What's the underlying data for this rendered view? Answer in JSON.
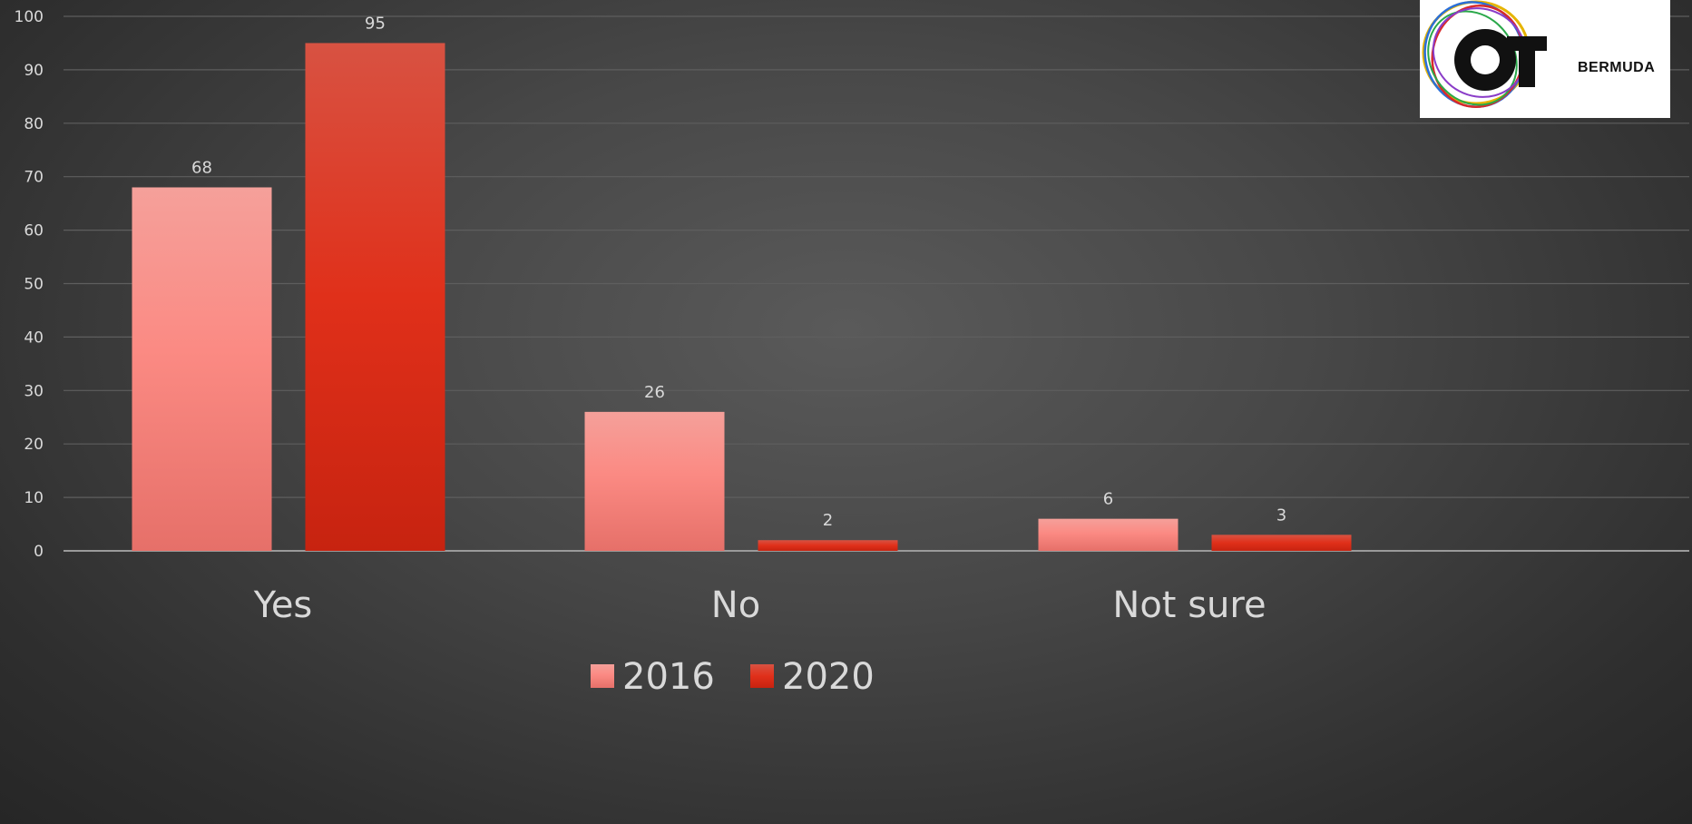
{
  "chart_data": {
    "type": "bar",
    "categories": [
      "Yes",
      "No",
      "Not sure"
    ],
    "series": [
      {
        "name": "2016",
        "values": [
          68,
          26,
          6
        ],
        "color": "#f08a84"
      },
      {
        "name": "2020",
        "values": [
          95,
          2,
          3
        ],
        "color": "#d8321a"
      }
    ],
    "ylim": [
      0,
      100
    ],
    "yticks": [
      "0",
      "10",
      "20",
      "30",
      "40",
      "50",
      "60",
      "70",
      "80",
      "90",
      "100"
    ],
    "grid": true,
    "legend_position": "bottom"
  },
  "logo": {
    "text": "BERMUDA",
    "wordmark": "OUT"
  },
  "colors": {
    "grid": "#5e5e5e",
    "axis": "#9a9a9a",
    "text": "#d9d9d9"
  }
}
